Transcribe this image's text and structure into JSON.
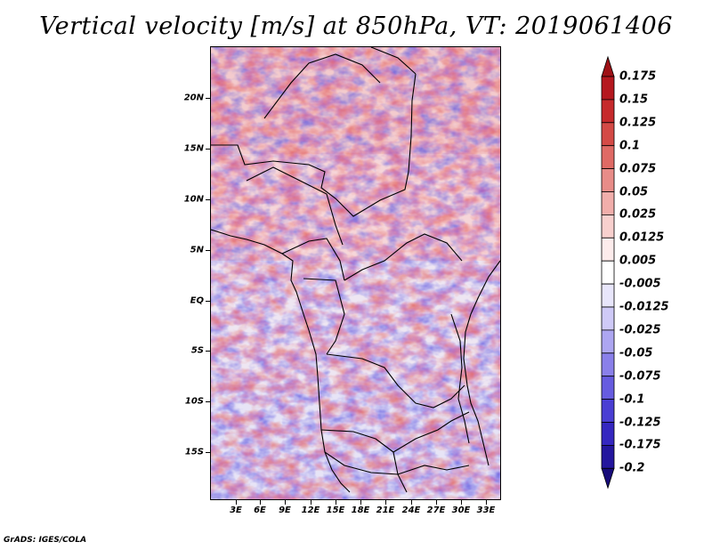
{
  "title": "Vertical velocity [m/s] at 850hPa, VT: 2019061406",
  "credit": "GrADS: IGES/COLA",
  "lat_labels": [
    "20N",
    "15N",
    "10N",
    "5N",
    "EQ",
    "5S",
    "10S",
    "15S"
  ],
  "lon_labels": [
    "3E",
    "6E",
    "9E",
    "12E",
    "15E",
    "18E",
    "21E",
    "24E",
    "27E",
    "30E",
    "33E"
  ],
  "colorbar": {
    "labels": [
      "0.175",
      "0.15",
      "0.125",
      "0.1",
      "0.075",
      "0.05",
      "0.025",
      "0.0125",
      "0.005",
      "-0.005",
      "-0.0125",
      "-0.025",
      "-0.05",
      "-0.075",
      "-0.1",
      "-0.125",
      "-0.175",
      "-0.2"
    ],
    "colors": [
      "#9e1116",
      "#b5181f",
      "#c62a2c",
      "#d44a46",
      "#df6a65",
      "#e88c88",
      "#f1aeab",
      "#f8d0ce",
      "#fdecec",
      "#ffffff",
      "#e8e6fb",
      "#cfcaf7",
      "#ada6f1",
      "#8a80ea",
      "#675ce0",
      "#4a3ed3",
      "#3527c0",
      "#24169e",
      "#170b7a"
    ]
  },
  "map": {
    "field": "vertical velocity",
    "pressure_level": "850hPa",
    "valid_time": "2019061406",
    "units": "m/s",
    "region": "Central Africa",
    "lon_range": [
      0.5,
      35
    ],
    "lat_range": [
      -19.5,
      25
    ]
  }
}
